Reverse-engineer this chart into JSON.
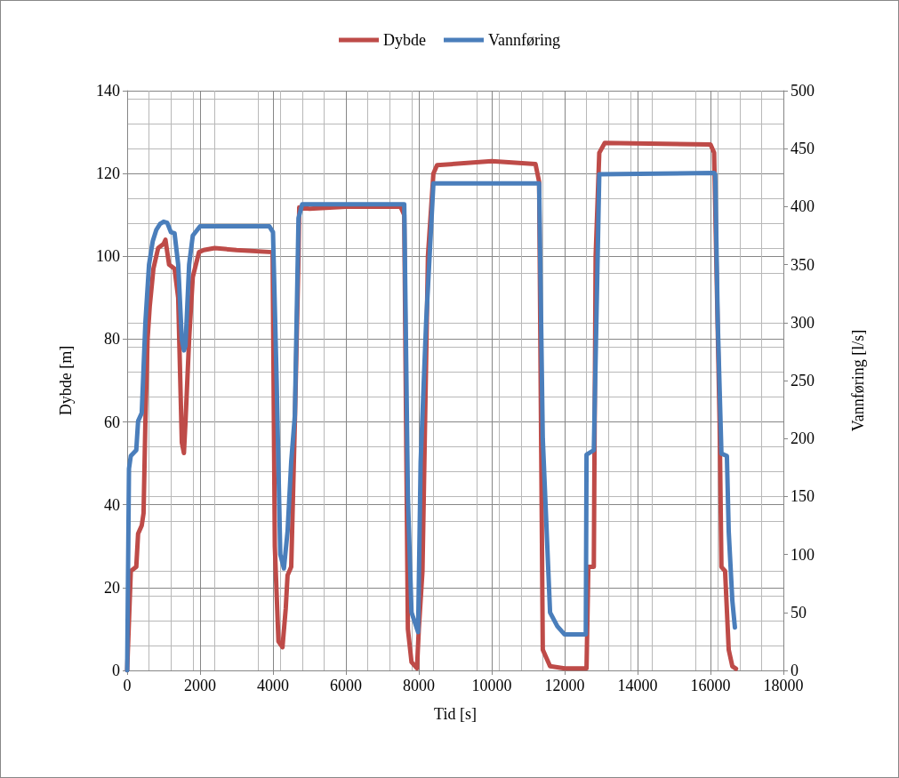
{
  "chart_data": {
    "type": "line",
    "xlabel": "Tid [s]",
    "ylabel": "Dybde [m]",
    "y2label": "Vannføring [l/s]",
    "xlim": [
      0,
      18000
    ],
    "xticks": [
      0,
      2000,
      4000,
      6000,
      8000,
      10000,
      12000,
      14000,
      16000,
      18000
    ],
    "ylim": [
      0,
      140
    ],
    "yticks": [
      0,
      20,
      40,
      60,
      80,
      100,
      120,
      140
    ],
    "y2lim": [
      0,
      500
    ],
    "y2ticks": [
      0,
      50,
      100,
      150,
      200,
      250,
      300,
      350,
      400,
      450,
      500
    ],
    "grid": true,
    "legend": "top",
    "marker": "none",
    "line_style": "solid",
    "series": [
      {
        "name": "Dybde",
        "color": "#be4b48",
        "x": [
          0,
          100,
          250,
          300,
          400,
          450,
          500,
          560,
          620,
          720,
          850,
          1000,
          1050,
          1150,
          1300,
          1400,
          1500,
          1557,
          1600,
          1700,
          1800,
          1970,
          2100,
          2400,
          3000,
          3990,
          4050,
          4150,
          4260,
          4350,
          4400,
          4500,
          4600,
          4700,
          4720,
          5000,
          6000,
          7500,
          7600,
          7700,
          7800,
          7950,
          8000,
          8100,
          8250,
          8400,
          8500,
          10000,
          11200,
          11300,
          11400,
          11600,
          12000,
          12600,
          12650,
          12800,
          12850,
          12950,
          13100,
          16000,
          16100,
          16250,
          16300,
          16400,
          16500,
          16600,
          16700
        ],
        "values": [
          0,
          24,
          25,
          33,
          35,
          38,
          60,
          80,
          88,
          97,
          102,
          103,
          104,
          98,
          97,
          90,
          55,
          52.5,
          60,
          80,
          95,
          101,
          101.5,
          102,
          101.5,
          101,
          30,
          7,
          5.6,
          15,
          23,
          25,
          60,
          100,
          111.8,
          111.5,
          112,
          112,
          110,
          10,
          2,
          0.5,
          10,
          24,
          100,
          120,
          122,
          123,
          122.3,
          118,
          5,
          1,
          0.5,
          0.5,
          25,
          25,
          100,
          125,
          127.4,
          127,
          125,
          60,
          25,
          24,
          5,
          1,
          0.4
        ]
      },
      {
        "name": "Vannføring",
        "color": "#4a7ebb",
        "axis": "y2",
        "x": [
          0,
          50,
          100,
          250,
          300,
          400,
          500,
          600,
          700,
          800,
          900,
          1000,
          1100,
          1200,
          1300,
          1400,
          1500,
          1557,
          1600,
          1700,
          1800,
          2000,
          3900,
          4000,
          4100,
          4200,
          4300,
          4400,
          4500,
          4600,
          4700,
          4800,
          7600,
          7700,
          7800,
          7980,
          8050,
          8200,
          8400,
          11300,
          11400,
          11600,
          11800,
          12000,
          12580,
          12600,
          12800,
          12950,
          16100,
          16130,
          16200,
          16300,
          16450,
          16500,
          16600,
          16670
        ],
        "values": [
          0,
          174,
          185,
          190,
          215,
          222,
          300,
          350,
          370,
          380,
          385,
          387,
          386,
          378,
          377,
          350,
          285,
          276,
          280,
          350,
          375,
          383,
          383,
          378,
          250,
          100,
          88,
          120,
          180,
          220,
          390,
          402,
          402,
          150,
          50,
          33,
          180,
          300,
          420,
          420,
          200,
          50,
          38,
          31,
          31,
          186,
          190,
          428,
          429,
          428,
          300,
          187,
          185,
          120,
          60,
          37
        ]
      }
    ]
  }
}
